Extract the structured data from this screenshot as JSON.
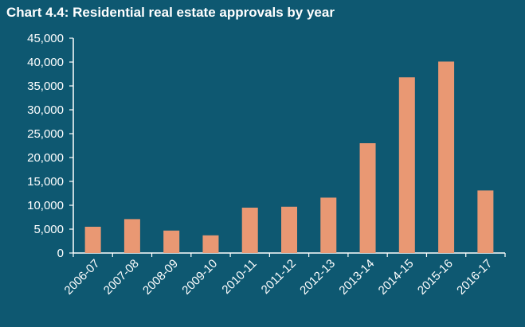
{
  "chart_data": {
    "type": "bar",
    "title": "Chart 4.4: Residential real estate approvals by year",
    "xlabel": "",
    "ylabel": "",
    "categories": [
      "2006-07",
      "2007-08",
      "2008-09",
      "2009-10",
      "2010-11",
      "2011-12",
      "2012-13",
      "2013-14",
      "2014-15",
      "2015-16",
      "2016-17"
    ],
    "values": [
      5500,
      7100,
      4700,
      3700,
      9500,
      9700,
      11600,
      23000,
      36800,
      40100,
      13100
    ],
    "ylim": [
      0,
      45000
    ],
    "yticks": [
      "0",
      "5,000",
      "10,000",
      "15,000",
      "20,000",
      "25,000",
      "30,000",
      "35,000",
      "40,000",
      "45,000"
    ],
    "grid": false,
    "legend": "none",
    "colors": {
      "background": "#0e5871",
      "bar": "#e99873",
      "axis": "#ffffff",
      "text": "#ffffff"
    }
  }
}
